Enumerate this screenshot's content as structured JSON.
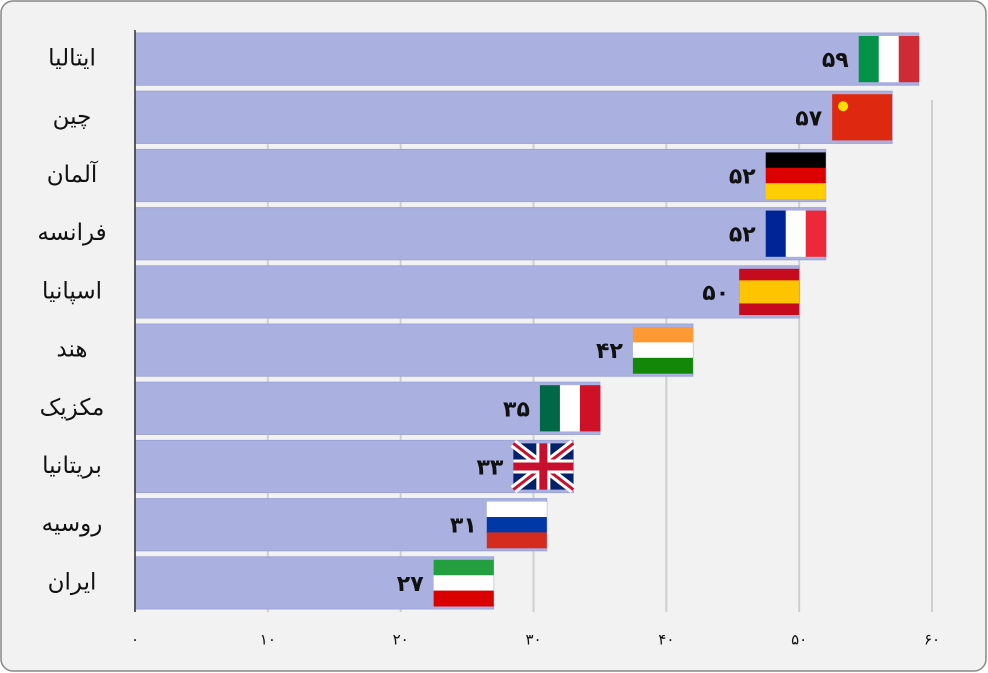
{
  "chart_data": {
    "type": "bar",
    "orientation": "horizontal",
    "categories": [
      "ایتالیا",
      "چین",
      "آلمان",
      "فرانسه",
      "اسپانیا",
      "هند",
      "مکزیک",
      "بریتانیا",
      "روسیه",
      "ایران"
    ],
    "values": [
      59,
      57,
      52,
      52,
      50,
      42,
      35,
      33,
      31,
      27
    ],
    "value_labels": [
      "۵۹",
      "۵۷",
      "۵۲",
      "۵۲",
      "۵۰",
      "۴۲",
      "۳۵",
      "۳۳",
      "۳۱",
      "۲۷"
    ],
    "color": "#aab0e0",
    "xlim": [
      0,
      60
    ],
    "xticks": [
      {
        "value": 0,
        "label": "۰"
      },
      {
        "value": 10,
        "label": "۱۰"
      },
      {
        "value": 20,
        "label": "۲۰"
      },
      {
        "value": 30,
        "label": "۳۰"
      },
      {
        "value": 40,
        "label": "۴۰"
      },
      {
        "value": 50,
        "label": "۵۰"
      },
      {
        "value": 60,
        "label": "۶۰"
      }
    ],
    "grid": true
  }
}
